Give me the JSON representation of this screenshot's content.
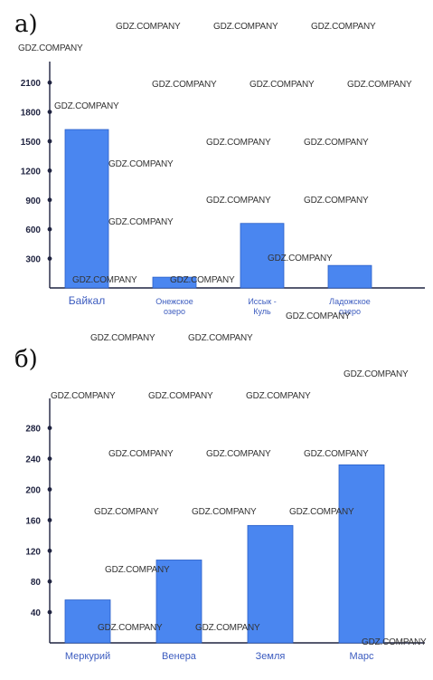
{
  "panels": {
    "a": {
      "label": "а)"
    },
    "b": {
      "label": "б)"
    }
  },
  "watermark": "GDZ.COMPANY",
  "colors": {
    "bar": "#4a86f0",
    "bar_edge": "#2a5fc8",
    "axis": "#1f2340",
    "cat_text": "#3b5bbf"
  },
  "chart_data": [
    {
      "type": "bar",
      "title": "",
      "categories": [
        "Байкал",
        "Онежское озеро",
        "Иссык - Куль",
        "Ладожское озеро"
      ],
      "category_lines": [
        [
          "Байкал"
        ],
        [
          "Онежское",
          "озеро"
        ],
        [
          "Иссык -",
          "Куль"
        ],
        [
          "Ладожское",
          "озеро"
        ]
      ],
      "values": [
        1620,
        110,
        660,
        230
      ],
      "yticks": [
        300,
        600,
        900,
        1200,
        1500,
        1800,
        2100
      ],
      "ylim": [
        0,
        2250
      ],
      "xlabel": "",
      "ylabel": "",
      "grid": false,
      "legend": false
    },
    {
      "type": "bar",
      "title": "",
      "categories": [
        "Меркурий",
        "Венера",
        "Земля",
        "Марс"
      ],
      "category_lines": [
        [
          "Меркурий"
        ],
        [
          "Венера"
        ],
        [
          "Земля"
        ],
        [
          "Марс"
        ]
      ],
      "values": [
        56,
        108,
        153,
        232
      ],
      "yticks": [
        40,
        80,
        120,
        160,
        200,
        240,
        280
      ],
      "ylim": [
        0,
        300
      ],
      "xlabel": "",
      "ylabel": "",
      "grid": false,
      "legend": false
    }
  ]
}
